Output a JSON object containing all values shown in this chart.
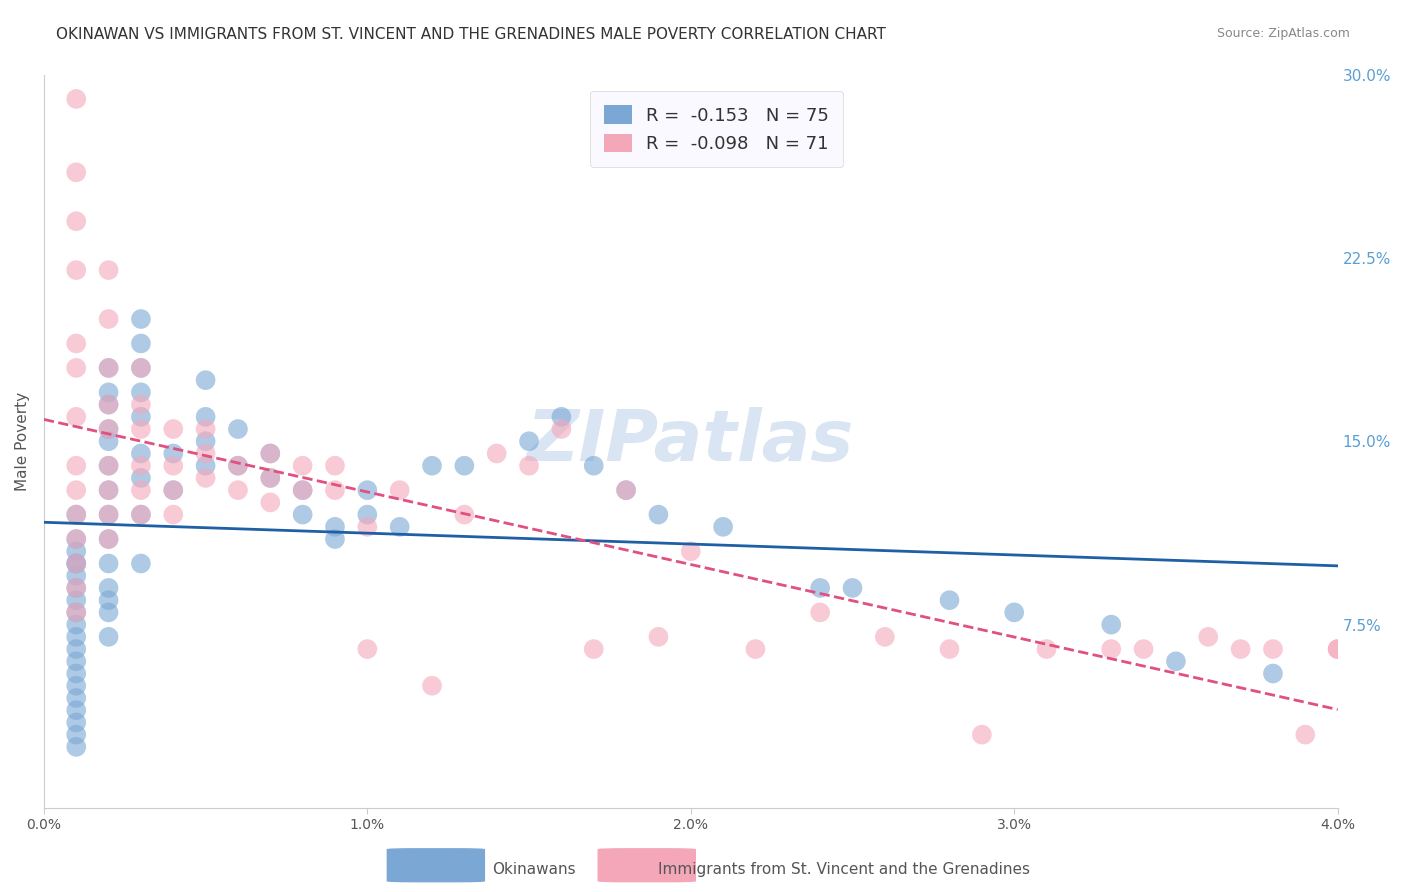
{
  "title": "OKINAWAN VS IMMIGRANTS FROM ST. VINCENT AND THE GRENADINES MALE POVERTY CORRELATION CHART",
  "source": "Source: ZipAtlas.com",
  "xlabel": "",
  "ylabel": "Male Poverty",
  "xlim": [
    0.0,
    0.04
  ],
  "ylim": [
    0.0,
    0.3
  ],
  "yticks_right": [
    0.075,
    0.15,
    0.225,
    0.3
  ],
  "ytick_right_labels": [
    "7.5%",
    "15.0%",
    "22.5%",
    "30.0%"
  ],
  "xticks": [
    0.0,
    0.01,
    0.02,
    0.03,
    0.04
  ],
  "xtick_labels": [
    "0.0%",
    "1.0%",
    "2.0%",
    "3.0%",
    "4.0%"
  ],
  "series": [
    {
      "name": "Okinawans",
      "R": -0.153,
      "N": 75,
      "color": "#7ba7d4",
      "line_color": "#1f5fa6",
      "line_style": "solid",
      "x": [
        0.001,
        0.001,
        0.001,
        0.001,
        0.001,
        0.001,
        0.001,
        0.001,
        0.001,
        0.001,
        0.001,
        0.001,
        0.001,
        0.001,
        0.001,
        0.001,
        0.001,
        0.001,
        0.001,
        0.001,
        0.002,
        0.002,
        0.002,
        0.002,
        0.002,
        0.002,
        0.002,
        0.002,
        0.002,
        0.002,
        0.002,
        0.002,
        0.002,
        0.002,
        0.003,
        0.003,
        0.003,
        0.003,
        0.003,
        0.003,
        0.003,
        0.003,
        0.003,
        0.004,
        0.004,
        0.005,
        0.005,
        0.005,
        0.005,
        0.006,
        0.006,
        0.007,
        0.007,
        0.008,
        0.008,
        0.009,
        0.009,
        0.01,
        0.01,
        0.011,
        0.012,
        0.013,
        0.015,
        0.016,
        0.017,
        0.018,
        0.019,
        0.021,
        0.024,
        0.025,
        0.028,
        0.03,
        0.033,
        0.035,
        0.038
      ],
      "y": [
        0.12,
        0.11,
        0.105,
        0.1,
        0.1,
        0.095,
        0.09,
        0.085,
        0.08,
        0.075,
        0.07,
        0.065,
        0.06,
        0.055,
        0.05,
        0.045,
        0.04,
        0.035,
        0.03,
        0.025,
        0.18,
        0.17,
        0.165,
        0.155,
        0.15,
        0.14,
        0.13,
        0.12,
        0.11,
        0.1,
        0.09,
        0.085,
        0.08,
        0.07,
        0.2,
        0.19,
        0.18,
        0.17,
        0.16,
        0.145,
        0.135,
        0.12,
        0.1,
        0.145,
        0.13,
        0.175,
        0.16,
        0.15,
        0.14,
        0.155,
        0.14,
        0.145,
        0.135,
        0.13,
        0.12,
        0.115,
        0.11,
        0.13,
        0.12,
        0.115,
        0.14,
        0.14,
        0.15,
        0.16,
        0.14,
        0.13,
        0.12,
        0.115,
        0.09,
        0.09,
        0.085,
        0.08,
        0.075,
        0.06,
        0.055
      ]
    },
    {
      "name": "Immigrants from St. Vincent and the Grenadines",
      "R": -0.098,
      "N": 71,
      "color": "#f4a7b9",
      "line_color": "#e05080",
      "line_style": "dashed",
      "x": [
        0.001,
        0.001,
        0.001,
        0.001,
        0.001,
        0.001,
        0.001,
        0.001,
        0.001,
        0.001,
        0.001,
        0.001,
        0.001,
        0.001,
        0.002,
        0.002,
        0.002,
        0.002,
        0.002,
        0.002,
        0.002,
        0.002,
        0.002,
        0.003,
        0.003,
        0.003,
        0.003,
        0.003,
        0.003,
        0.004,
        0.004,
        0.004,
        0.004,
        0.005,
        0.005,
        0.005,
        0.006,
        0.006,
        0.007,
        0.007,
        0.007,
        0.008,
        0.008,
        0.009,
        0.009,
        0.01,
        0.01,
        0.011,
        0.012,
        0.013,
        0.014,
        0.015,
        0.016,
        0.017,
        0.018,
        0.019,
        0.02,
        0.022,
        0.024,
        0.026,
        0.028,
        0.029,
        0.031,
        0.033,
        0.034,
        0.036,
        0.037,
        0.038,
        0.039,
        0.04,
        0.04
      ],
      "y": [
        0.29,
        0.26,
        0.24,
        0.22,
        0.19,
        0.18,
        0.16,
        0.14,
        0.13,
        0.12,
        0.11,
        0.1,
        0.09,
        0.08,
        0.22,
        0.2,
        0.18,
        0.165,
        0.155,
        0.14,
        0.13,
        0.12,
        0.11,
        0.18,
        0.165,
        0.155,
        0.14,
        0.13,
        0.12,
        0.155,
        0.14,
        0.13,
        0.12,
        0.155,
        0.145,
        0.135,
        0.14,
        0.13,
        0.145,
        0.135,
        0.125,
        0.14,
        0.13,
        0.14,
        0.13,
        0.115,
        0.065,
        0.13,
        0.05,
        0.12,
        0.145,
        0.14,
        0.155,
        0.065,
        0.13,
        0.07,
        0.105,
        0.065,
        0.08,
        0.07,
        0.065,
        0.03,
        0.065,
        0.065,
        0.065,
        0.07,
        0.065,
        0.065,
        0.03,
        0.065,
        0.065
      ]
    }
  ],
  "legend_box_color": "#f0f4ff",
  "watermark": "ZIPatlas",
  "watermark_color": "#d0dff0",
  "background_color": "#ffffff",
  "grid_color": "#cccccc",
  "title_fontsize": 11,
  "axis_label_color": "#7ba7d4",
  "tick_label_color_right": "#5a9fd4"
}
